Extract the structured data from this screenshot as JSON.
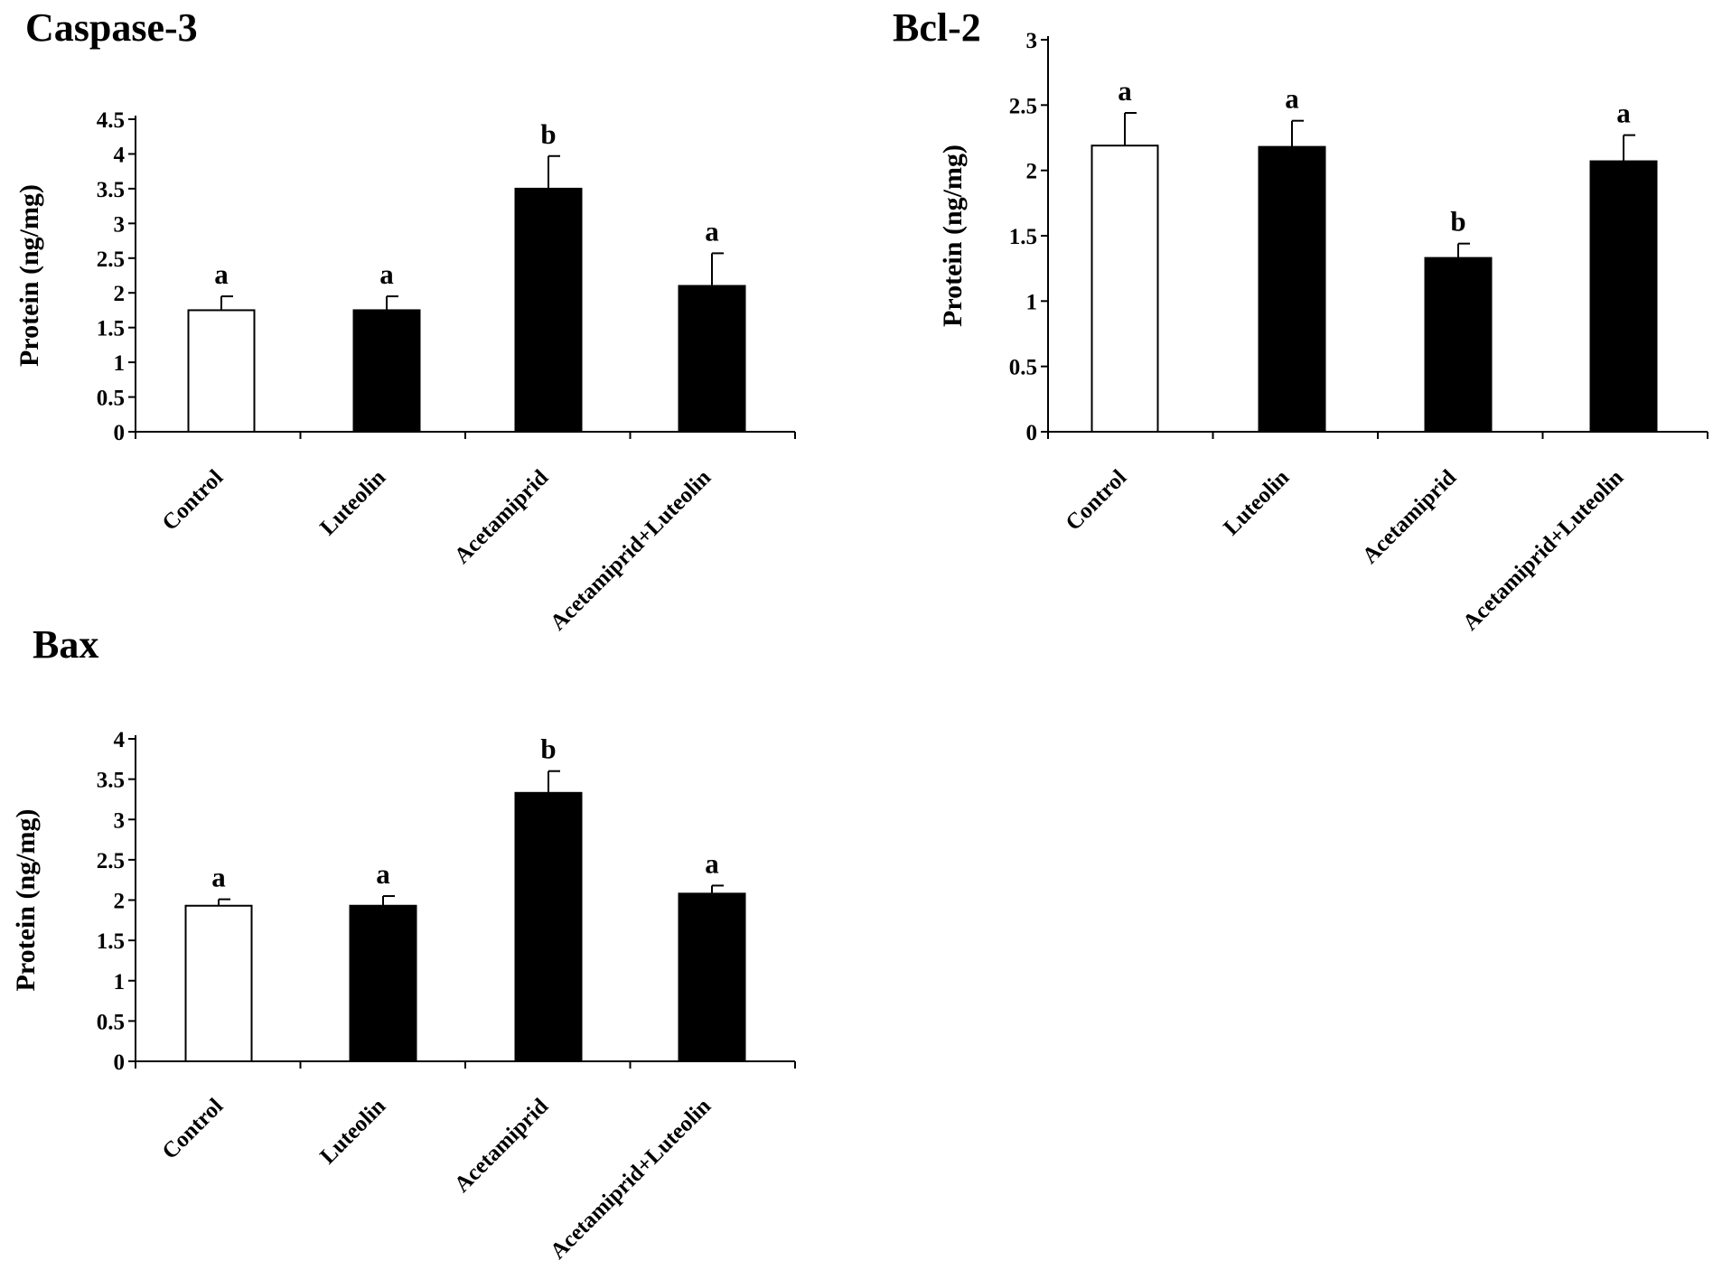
{
  "chart_data": [
    {
      "type": "bar",
      "title": "Caspase-3",
      "ylabel": "Protein (ng/mg)",
      "categories": [
        "Control",
        "Luteolin",
        "Acetamiprid",
        "Acetamiprid+Luteolin"
      ],
      "values": [
        1.75,
        1.75,
        3.5,
        2.1
      ],
      "errors": [
        0.2,
        0.2,
        0.47,
        0.47
      ],
      "significance": [
        "a",
        "a",
        "b",
        "a"
      ],
      "bar_colors": [
        "#ffffff",
        "#000000",
        "#000000",
        "#000000"
      ],
      "ylim": [
        0,
        4.5
      ],
      "yticks": [
        "0",
        "0.5",
        "1",
        "1.5",
        "2",
        "2.5",
        "3",
        "3.5",
        "4",
        "4.5"
      ]
    },
    {
      "type": "bar",
      "title": "Bcl-2",
      "ylabel": "Protein (ng/mg)",
      "categories": [
        "Control",
        "Luteolin",
        "Acetamiprid",
        "Acetamiprid+Luteolin"
      ],
      "values": [
        2.19,
        2.18,
        1.33,
        2.07
      ],
      "errors": [
        0.25,
        0.2,
        0.11,
        0.2
      ],
      "significance": [
        "a",
        "a",
        "b",
        "a"
      ],
      "bar_colors": [
        "#ffffff",
        "#000000",
        "#000000",
        "#000000"
      ],
      "ylim": [
        0,
        3
      ],
      "yticks": [
        "0",
        "0.5",
        "1",
        "1.5",
        "2",
        "2.5",
        "3"
      ]
    },
    {
      "type": "bar",
      "title": "Bax",
      "ylabel": "Protein (ng/mg)",
      "categories": [
        "Control",
        "Luteolin",
        "Acetamiprid",
        "Acetamiprid+Luteolin"
      ],
      "values": [
        1.93,
        1.93,
        3.33,
        2.08
      ],
      "errors": [
        0.08,
        0.12,
        0.27,
        0.1
      ],
      "significance": [
        "a",
        "a",
        "b",
        "a"
      ],
      "bar_colors": [
        "#ffffff",
        "#000000",
        "#000000",
        "#000000"
      ],
      "ylim": [
        0,
        4
      ],
      "yticks": [
        "0",
        "0.5",
        "1",
        "1.5",
        "2",
        "2.5",
        "3",
        "3.5",
        "4"
      ]
    }
  ]
}
